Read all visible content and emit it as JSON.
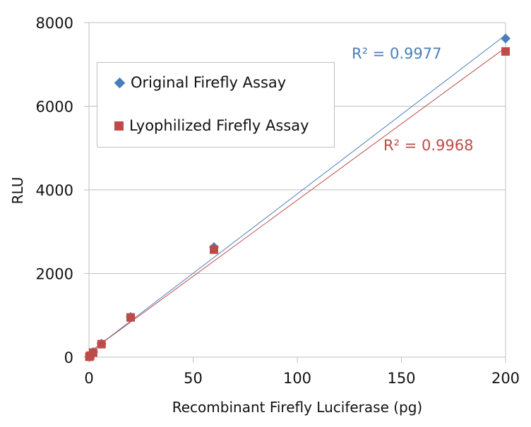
{
  "chart_data": {
    "type": "scatter",
    "title": "",
    "xlabel": "Recombinant Firefly Luciferase (pg)",
    "ylabel": "RLU",
    "xlim": [
      0,
      200
    ],
    "ylim": [
      0,
      8000
    ],
    "x_ticks": [
      0,
      50,
      100,
      150,
      200
    ],
    "y_ticks": [
      0,
      2000,
      4000,
      6000,
      8000
    ],
    "grid": "horizontal",
    "legend_position": "upper-left",
    "series": [
      {
        "name": "Original Firefly Assay",
        "marker": "diamond",
        "color": "#4a7ebb",
        "x": [
          0.2,
          0.6,
          2,
          6,
          20,
          60,
          200
        ],
        "y": [
          10,
          40,
          120,
          320,
          960,
          2630,
          7620
        ],
        "trendline": "linear",
        "r_squared": "R² = 0.9977"
      },
      {
        "name": "Lyophilized Firefly Assay",
        "marker": "square",
        "color": "#be4b48",
        "x": [
          0.2,
          0.6,
          2,
          6,
          20,
          60,
          200
        ],
        "y": [
          8,
          35,
          110,
          310,
          950,
          2570,
          7310
        ],
        "trendline": "linear",
        "r_squared": "R² = 0.9968"
      }
    ]
  },
  "labels": {
    "xlabel": "Recombinant Firefly Luciferase (pg)",
    "ylabel": "RLU",
    "legend_original": "Original Firefly Assay",
    "legend_lyophilized": "Lyophilized Firefly Assay",
    "r2_original": "R² = 0.9977",
    "r2_lyophilized": "R² = 0.9968",
    "y_ticks": [
      "8000",
      "6000",
      "4000",
      "2000",
      "0"
    ],
    "x_ticks": [
      "0",
      "50",
      "100",
      "150",
      "200"
    ]
  }
}
